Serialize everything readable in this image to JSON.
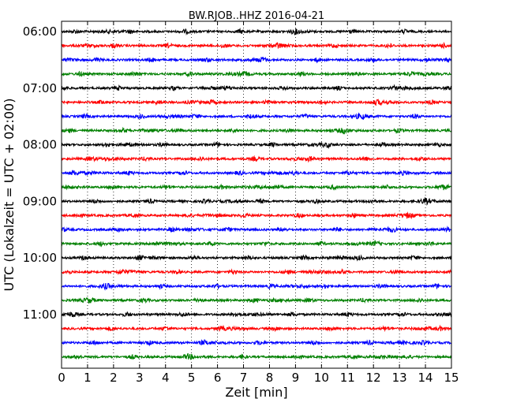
{
  "chart_data": {
    "type": "line",
    "title": "BW.RJOB..HHZ 2016-04-21",
    "xlabel": "Zeit  [min]",
    "ylabel": "UTC (Lokalzeit = UTC + 02:00)",
    "xlim": [
      0,
      15
    ],
    "xticks": [
      "0",
      "1",
      "2",
      "3",
      "4",
      "5",
      "6",
      "7",
      "8",
      "9",
      "10",
      "11",
      "12",
      "13",
      "14",
      "15"
    ],
    "yticks": [
      "06:00",
      "07:00",
      "08:00",
      "09:00",
      "10:00",
      "11:00"
    ],
    "traces_per_hour": 4,
    "trace_count": 24,
    "trace_colors": [
      "#000000",
      "#ff0000",
      "#0000ff",
      "#008000"
    ],
    "grid": "vertical dotted at each minute"
  }
}
